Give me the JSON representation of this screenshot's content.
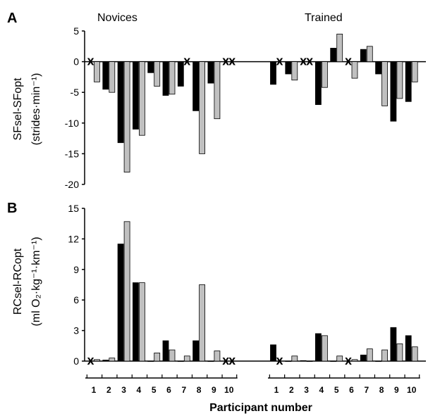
{
  "chart_data": [
    {
      "type": "bar",
      "panel_label": "A",
      "groups": [
        "Novices",
        "Trained"
      ],
      "categories": [
        "1",
        "2",
        "3",
        "4",
        "5",
        "6",
        "7",
        "8",
        "9",
        "10"
      ],
      "ylabel_line1": "SFsel-SFopt",
      "ylabel_line2": "(strides·min⁻¹)",
      "ylim": [
        -20,
        5
      ],
      "yticks": [
        5,
        0,
        -5,
        -10,
        -15,
        -20
      ],
      "colors": {
        "series1": "#000000",
        "series2": "#c0c0c0"
      },
      "missing_marker": "X",
      "novices": {
        "series1": [
          null,
          -4.5,
          -13.2,
          -11.0,
          -1.8,
          -5.5,
          -4.0,
          -8.0,
          -3.5,
          null
        ],
        "series2": [
          -3.3,
          -5.0,
          -18.0,
          -12.0,
          -4.0,
          -5.3,
          null,
          -15.0,
          -9.3,
          null
        ]
      },
      "trained": {
        "series1": [
          -3.7,
          -2.0,
          null,
          -7.0,
          2.2,
          null,
          2.0,
          -2.0,
          -9.7,
          -6.5
        ],
        "series2": [
          null,
          -3.0,
          null,
          -4.2,
          4.5,
          -2.7,
          2.5,
          -7.2,
          -6.0,
          -3.3
        ]
      }
    },
    {
      "type": "bar",
      "panel_label": "B",
      "groups": [
        "Novices",
        "Trained"
      ],
      "categories": [
        "1",
        "2",
        "3",
        "4",
        "5",
        "6",
        "7",
        "8",
        "9",
        "10"
      ],
      "ylabel_line1": "RCsel-RCopt",
      "ylabel_line2": "(ml O₂·kg⁻¹·km⁻¹)",
      "ylim": [
        0,
        15
      ],
      "yticks": [
        15,
        12,
        9,
        6,
        3,
        0
      ],
      "colors": {
        "series1": "#000000",
        "series2": "#c0c0c0"
      },
      "missing_marker": "X",
      "novices": {
        "series1": [
          null,
          0.1,
          11.5,
          7.7,
          0.0,
          2.0,
          0.0,
          2.0,
          0.0,
          null
        ],
        "series2": [
          0.15,
          0.3,
          13.7,
          7.7,
          0.8,
          1.1,
          0.5,
          7.5,
          1.0,
          null
        ]
      },
      "trained": {
        "series1": [
          1.6,
          0.0,
          0.05,
          2.7,
          0.0,
          null,
          0.6,
          0.0,
          3.3,
          2.5
        ],
        "series2": [
          null,
          0.5,
          0.0,
          2.5,
          0.5,
          0.15,
          1.2,
          1.1,
          1.7,
          1.4
        ]
      }
    }
  ],
  "xlabel": "Participant number"
}
